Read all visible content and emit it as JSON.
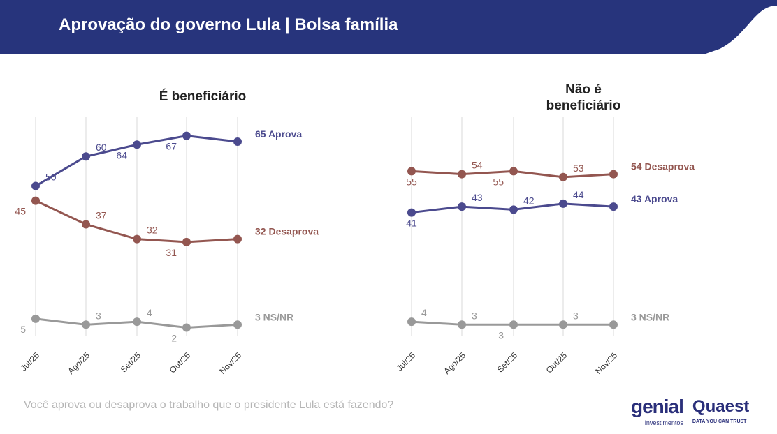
{
  "header": {
    "title": "Aprovação do governo Lula | Bolsa família"
  },
  "question": "Você aprova ou desaprova o trabalho que o presidente Lula está fazendo?",
  "logo": {
    "genial": "genial",
    "genial_sub": "investimentos",
    "quaest": "Quaest",
    "quaest_sub": "DATA YOU CAN TRUST"
  },
  "colors": {
    "header": "#27347c",
    "aprova": "#4b4a8e",
    "desaprova": "#935650",
    "nsnr": "#999999"
  },
  "chart_data": [
    {
      "type": "line",
      "title": "É beneficiário",
      "categories": [
        "Jul/25",
        "Ago/25",
        "Set/25",
        "Out/25",
        "Nov/25"
      ],
      "ylim": [
        0,
        75
      ],
      "series": [
        {
          "name": "Aprova",
          "end_label": "65 Aprova",
          "color": "#4b4a8e",
          "values": [
            50,
            60,
            64,
            67,
            65
          ],
          "pos": [
            "ar",
            "ar",
            "bl",
            "bl"
          ]
        },
        {
          "name": "Desaprova",
          "end_label": "32 Desaprova",
          "color": "#935650",
          "values": [
            45,
            37,
            32,
            31,
            32
          ],
          "pos": [
            "bl",
            "ar",
            "ar",
            "bl"
          ]
        },
        {
          "name": "NS/NR",
          "end_label": "3 NS/NR",
          "color": "#999999",
          "values": [
            5,
            3,
            4,
            2,
            3
          ],
          "pos": [
            "bl",
            "ar",
            "ar",
            "bl"
          ]
        }
      ]
    },
    {
      "type": "line",
      "title": "Não é beneficiário",
      "categories": [
        "Jul/25",
        "Ago/25",
        "Set/25",
        "Out/25",
        "Nov/25"
      ],
      "ylim": [
        0,
        75
      ],
      "series": [
        {
          "name": "Desaprova",
          "end_label": "54 Desaprova",
          "color": "#935650",
          "values": [
            55,
            54,
            55,
            53,
            54
          ],
          "pos": [
            "b",
            "ar",
            "bl",
            "ar"
          ]
        },
        {
          "name": "Aprova",
          "end_label": "43 Aprova",
          "color": "#4b4a8e",
          "values": [
            41,
            43,
            42,
            44,
            43
          ],
          "pos": [
            "b",
            "ar",
            "ar",
            "ar"
          ]
        },
        {
          "name": "NS/NR",
          "end_label": "3 NS/NR",
          "color": "#999999",
          "values": [
            4,
            3,
            3,
            3,
            3
          ],
          "pos": [
            "ar",
            "ar",
            "bl",
            "ar"
          ]
        }
      ]
    }
  ]
}
